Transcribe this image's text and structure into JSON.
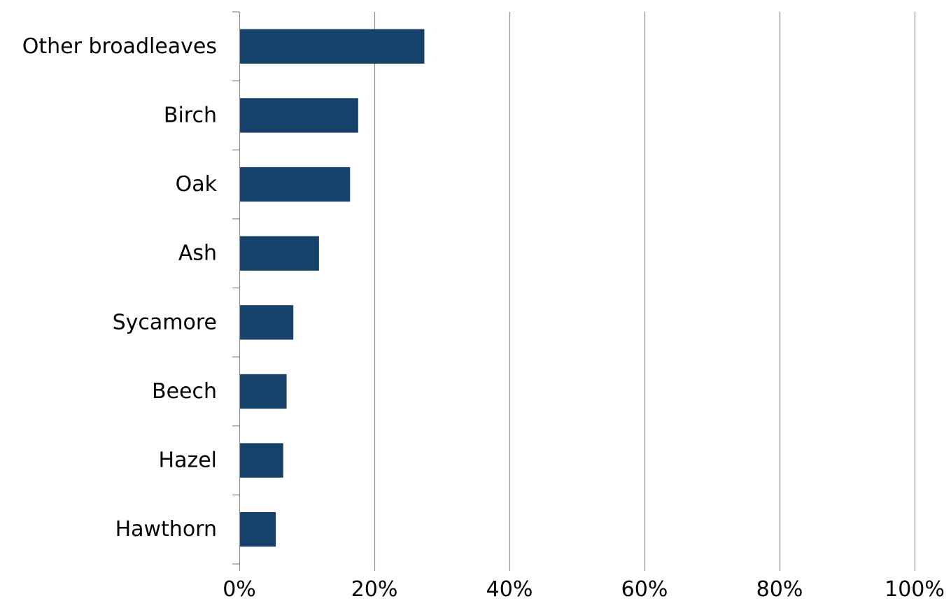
{
  "chart_data": {
    "type": "bar",
    "orientation": "horizontal",
    "categories": [
      "Other broadleaves",
      "Birch",
      "Oak",
      "Ash",
      "Sycamore",
      "Beech",
      "Hazel",
      "Hawthorn"
    ],
    "values": [
      27.4,
      17.6,
      16.4,
      11.8,
      8.0,
      7.0,
      6.5,
      5.4
    ],
    "value_unit": "%",
    "xlim": [
      0,
      100
    ],
    "x_ticks": [
      0,
      20,
      40,
      60,
      80,
      100
    ],
    "x_tick_labels": [
      "0%",
      "20%",
      "40%",
      "60%",
      "80%",
      "100%"
    ],
    "title": "",
    "xlabel": "",
    "ylabel": "",
    "grid": "vertical",
    "legend": "none",
    "colors": {
      "bar": "#15416a",
      "grid": "#8c8c8c",
      "axis": "#8c8c8c"
    }
  }
}
